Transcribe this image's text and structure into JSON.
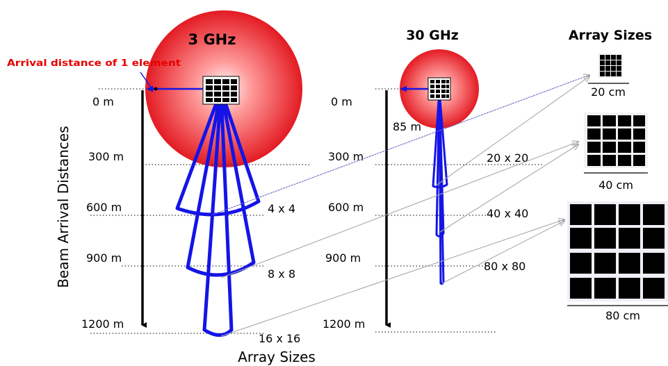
{
  "panels": {
    "left_title": "3 GHz",
    "right_title": "30 GHz",
    "sizes_title": "Array Sizes"
  },
  "annotation": "Arrival distance of 1 element",
  "y_axis_label": "Beam Arrival Distances",
  "x_axis_label": "Array Sizes",
  "left_distances": [
    "0 m",
    "300 m",
    "600 m",
    "900 m",
    "1200 m"
  ],
  "right_distances": [
    "0 m",
    "300 m",
    "600 m",
    "900 m",
    "1200 m"
  ],
  "right_extra_distance": "85 m",
  "left_array_labels": [
    "4 x 4",
    "8 x 8",
    "16 x 16"
  ],
  "right_array_labels": [
    "20 x 20",
    "40 x 40",
    "80 x 80"
  ],
  "physical_sizes": [
    "20 cm",
    "40 cm",
    "80 cm"
  ],
  "colors": {
    "beam": "#1414e6",
    "annotation": "#e60000",
    "arrow": "#b0b0b0",
    "sphere": "#e8202a"
  }
}
